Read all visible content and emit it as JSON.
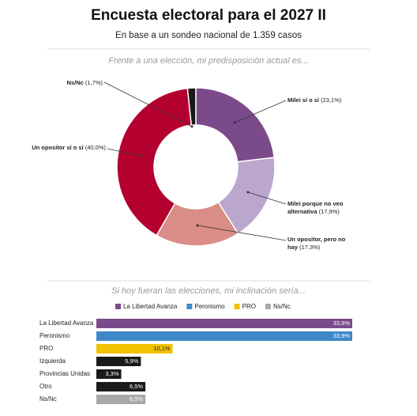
{
  "title": "Encuesta electoral para el 2027 II",
  "subtitle": "En base a un sondeo nacional de 1.359 casos",
  "chart_data": [
    {
      "type": "donut",
      "title": "Frente a una elección, mi predisposición actual es...",
      "categories": [
        "Milei sí o sí",
        "Milei porque no veo alternativa",
        "Un opositor, pero no hay",
        "Un opositor sí o sí",
        "Ns/Nc"
      ],
      "values": [
        23.1,
        17.9,
        17.3,
        40.0,
        1.7
      ],
      "value_labels": [
        "(23,1%)",
        "(17,9%)",
        "(17,3%)",
        "(40,0%)",
        "(1,7%)"
      ],
      "colors": [
        "#7b4a8b",
        "#bba6cd",
        "#d98d86",
        "#b4002e",
        "#1a1a1a"
      ]
    },
    {
      "type": "hbar",
      "title": "Si hoy fueran las elecciones, mi inclinación sería...",
      "categories": [
        "La Libertad Avanza",
        "Peronismo",
        "PRO",
        "Izquierda",
        "Provincias Unidas",
        "Otro",
        "Ns/Nc"
      ],
      "values": [
        33.9,
        33.9,
        10.1,
        5.9,
        3.3,
        6.5,
        6.5
      ],
      "value_labels": [
        "33,9%",
        "33,9%",
        "10,1%",
        "5,9%",
        "3,3%",
        "6,5%",
        "6,5%"
      ],
      "colors": [
        "#7b4a8b",
        "#3f88c8",
        "#f2c200",
        "#1a1a1a",
        "#1a1a1a",
        "#1a1a1a",
        "#a9a9a9"
      ],
      "legend": [
        {
          "name": "La Libertad Avanza",
          "color": "#7b4a8b"
        },
        {
          "name": "Peronismo",
          "color": "#3f88c8"
        },
        {
          "name": "PRO",
          "color": "#f2c200"
        },
        {
          "name": "Ns/Nc",
          "color": "#a9a9a9"
        }
      ]
    }
  ]
}
